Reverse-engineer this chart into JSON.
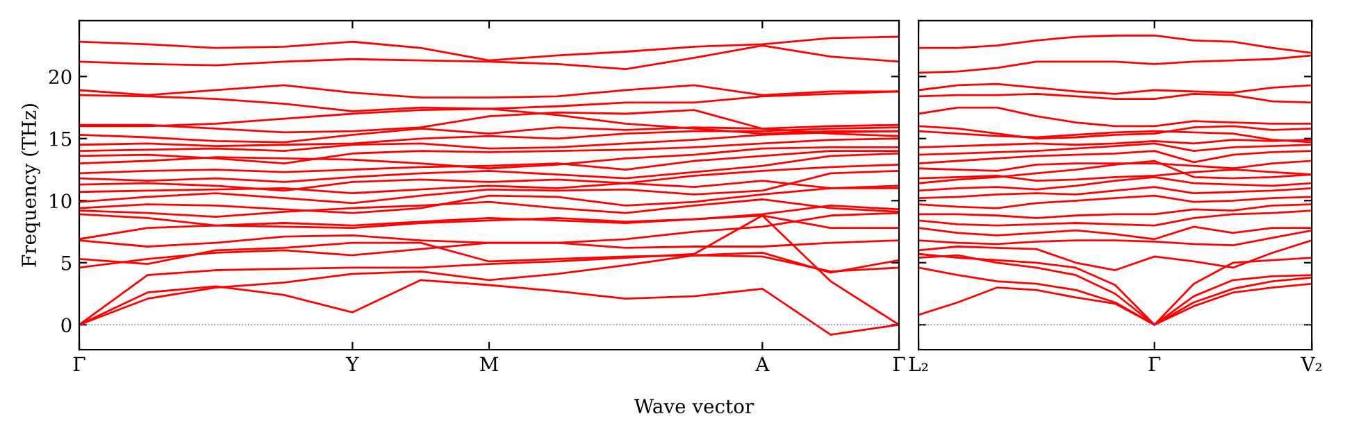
{
  "chart_data": [
    {
      "type": "line",
      "ylabel": "Frequency (THz)",
      "xlabel": "Wave vector",
      "ylim": [
        -2,
        24.5
      ],
      "yticks": [
        0,
        5,
        10,
        15,
        20
      ],
      "categories": [
        "Γ",
        null,
        null,
        null,
        "Y",
        null,
        "M",
        null,
        null,
        null,
        "A",
        null,
        "Γ"
      ],
      "grid": false,
      "ref_lines": [
        {
          "axis": "y",
          "value": 0,
          "color": "#6666ff",
          "line_style": "dotted"
        }
      ],
      "series": [
        {
          "color": "#ff0000",
          "values": [
            0,
            2.6,
            3.1,
            2.4,
            1.0,
            3.6,
            3.2,
            2.7,
            2.1,
            2.3,
            2.9,
            -0.8,
            0
          ]
        },
        {
          "color": "#ff0000",
          "values": [
            0,
            2.1,
            3.0,
            3.4,
            4.1,
            4.3,
            3.6,
            4.1,
            4.8,
            5.6,
            5.8,
            4.2,
            5.2
          ]
        },
        {
          "color": "#ff0000",
          "values": [
            0,
            4.0,
            4.4,
            4.5,
            4.6,
            4.6,
            4.9,
            5.1,
            5.4,
            5.7,
            8.8,
            3.5,
            0
          ]
        },
        {
          "color": "#ff0000",
          "values": [
            4.6,
            5.3,
            5.8,
            6.0,
            5.6,
            6.1,
            6.6,
            6.6,
            6.2,
            6.3,
            6.3,
            6.6,
            6.8
          ]
        },
        {
          "color": "#ff0000",
          "values": [
            5.3,
            4.9,
            6.0,
            6.2,
            6.6,
            6.6,
            5.1,
            5.3,
            5.5,
            5.6,
            5.5,
            4.3,
            4.6
          ]
        },
        {
          "color": "#ff0000",
          "values": [
            6.8,
            6.3,
            6.6,
            7.1,
            7.2,
            6.8,
            6.6,
            6.6,
            6.9,
            7.5,
            7.9,
            8.8,
            9.0
          ]
        },
        {
          "color": "#ff0000",
          "values": [
            6.9,
            7.8,
            8.0,
            8.2,
            8.0,
            8.3,
            8.6,
            8.4,
            8.2,
            8.5,
            8.8,
            7.8,
            7.8
          ]
        },
        {
          "color": "#ff0000",
          "values": [
            8.9,
            8.6,
            8.0,
            7.9,
            7.8,
            8.2,
            8.4,
            8.6,
            8.3,
            8.5,
            8.9,
            9.6,
            9.3
          ]
        },
        {
          "color": "#ff0000",
          "values": [
            9.2,
            9.0,
            8.7,
            9.1,
            9.4,
            9.6,
            9.9,
            9.4,
            9.0,
            9.6,
            10.1,
            9.4,
            9.1
          ]
        },
        {
          "color": "#ff0000",
          "values": [
            9.4,
            9.7,
            9.6,
            9.3,
            9.0,
            9.4,
            10.4,
            10.3,
            9.6,
            9.9,
            10.5,
            11.0,
            11.2
          ]
        },
        {
          "color": "#ff0000",
          "values": [
            9.9,
            10.3,
            10.6,
            10.2,
            9.8,
            10.4,
            10.9,
            10.8,
            10.9,
            10.5,
            10.8,
            12.2,
            12.4
          ]
        },
        {
          "color": "#ff0000",
          "values": [
            10.7,
            10.8,
            10.9,
            11.0,
            10.6,
            10.9,
            11.2,
            11.0,
            11.4,
            11.1,
            11.6,
            11.0,
            11.0
          ]
        },
        {
          "color": "#ff0000",
          "values": [
            11.3,
            11.4,
            11.2,
            10.8,
            11.5,
            11.7,
            11.5,
            11.7,
            11.4,
            12.0,
            12.4,
            12.7,
            12.9
          ]
        },
        {
          "color": "#ff0000",
          "values": [
            11.8,
            11.6,
            11.8,
            11.5,
            11.9,
            12.2,
            12.4,
            12.1,
            11.8,
            12.3,
            12.8,
            13.6,
            13.8
          ]
        },
        {
          "color": "#ff0000",
          "values": [
            12.2,
            12.4,
            12.5,
            12.3,
            12.5,
            12.7,
            12.8,
            13.0,
            12.5,
            13.2,
            13.6,
            14.0,
            14.0
          ]
        },
        {
          "color": "#ff0000",
          "values": [
            13.0,
            13.2,
            13.5,
            13.4,
            13.3,
            13.0,
            12.6,
            12.9,
            13.4,
            13.7,
            14.2,
            14.3,
            14.3
          ]
        },
        {
          "color": "#ff0000",
          "values": [
            13.6,
            13.7,
            13.4,
            13.0,
            13.8,
            14.0,
            13.9,
            14.0,
            14.1,
            14.3,
            14.6,
            14.9,
            15.0
          ]
        },
        {
          "color": "#ff0000",
          "values": [
            14.0,
            14.1,
            14.2,
            14.0,
            14.5,
            14.6,
            14.2,
            14.3,
            14.6,
            14.9,
            15.3,
            15.5,
            15.6
          ]
        },
        {
          "color": "#ff0000",
          "values": [
            14.5,
            14.6,
            14.4,
            14.5,
            14.6,
            15.0,
            15.2,
            15.0,
            15.4,
            15.6,
            15.6,
            15.8,
            15.9
          ]
        },
        {
          "color": "#ff0000",
          "values": [
            15.3,
            15.1,
            14.8,
            14.7,
            15.3,
            15.8,
            15.4,
            15.9,
            15.7,
            15.9,
            15.8,
            16.0,
            16.1
          ]
        },
        {
          "color": "#ff0000",
          "values": [
            16.0,
            16.0,
            16.2,
            16.6,
            17.0,
            17.3,
            17.4,
            16.9,
            16.2,
            15.8,
            15.4,
            15.6,
            15.6
          ]
        },
        {
          "color": "#ff0000",
          "values": [
            16.1,
            16.1,
            15.8,
            15.5,
            15.6,
            15.9,
            16.8,
            17.1,
            17.0,
            17.3,
            15.8,
            15.4,
            15.2
          ]
        },
        {
          "color": "#ff0000",
          "values": [
            18.5,
            18.4,
            18.2,
            17.8,
            17.2,
            17.5,
            17.4,
            17.6,
            17.9,
            17.9,
            18.4,
            18.6,
            18.8
          ]
        },
        {
          "color": "#ff0000",
          "values": [
            18.9,
            18.5,
            18.9,
            19.3,
            18.7,
            18.3,
            18.3,
            18.4,
            18.9,
            19.3,
            18.5,
            18.8,
            18.8
          ]
        },
        {
          "color": "#ff0000",
          "values": [
            21.2,
            21.0,
            20.9,
            21.2,
            21.4,
            21.3,
            21.2,
            21.0,
            20.6,
            21.5,
            22.5,
            21.6,
            21.2
          ]
        },
        {
          "color": "#ff0000",
          "values": [
            22.8,
            22.6,
            22.3,
            22.4,
            22.8,
            22.3,
            21.3,
            21.7,
            22.0,
            22.4,
            22.6,
            23.1,
            23.2
          ]
        }
      ]
    },
    {
      "type": "line",
      "ylim": [
        -2,
        24.5
      ],
      "yticks": [
        0,
        5,
        10,
        15,
        20
      ],
      "tick_labels": "x",
      "categories": [
        "L₂",
        null,
        null,
        null,
        null,
        null,
        "Γ",
        null,
        null,
        null,
        "V₂"
      ],
      "grid": false,
      "ref_lines": [
        {
          "axis": "y",
          "value": 0,
          "color": "#6666ff",
          "line_style": "dotted"
        }
      ],
      "series": [
        {
          "color": "#ff0000",
          "values": [
            0.8,
            1.8,
            3.0,
            2.8,
            2.2,
            1.7,
            0,
            1.5,
            2.6,
            3.0,
            3.3
          ]
        },
        {
          "color": "#ff0000",
          "values": [
            4.6,
            4.0,
            3.5,
            3.3,
            2.8,
            1.8,
            0,
            1.8,
            2.9,
            3.5,
            3.8
          ]
        },
        {
          "color": "#ff0000",
          "values": [
            5.4,
            5.6,
            5.0,
            4.6,
            4.0,
            2.5,
            0,
            2.3,
            3.6,
            3.9,
            4.0
          ]
        },
        {
          "color": "#ff0000",
          "values": [
            5.7,
            5.4,
            5.2,
            5.0,
            4.6,
            3.2,
            0,
            3.3,
            5.0,
            5.2,
            5.4
          ]
        },
        {
          "color": "#ff0000",
          "values": [
            6.0,
            6.3,
            6.2,
            6.1,
            5.0,
            4.4,
            5.5,
            5.1,
            4.6,
            5.8,
            6.8
          ]
        },
        {
          "color": "#ff0000",
          "values": [
            6.8,
            6.6,
            6.5,
            6.7,
            6.8,
            6.8,
            6.7,
            6.5,
            6.4,
            7.0,
            7.6
          ]
        },
        {
          "color": "#ff0000",
          "values": [
            7.8,
            7.4,
            7.2,
            7.4,
            7.6,
            7.3,
            6.9,
            7.9,
            7.4,
            7.8,
            7.8
          ]
        },
        {
          "color": "#ff0000",
          "values": [
            8.4,
            8.1,
            8.0,
            8.1,
            8.2,
            8.1,
            8.0,
            8.6,
            8.9,
            9.0,
            9.2
          ]
        },
        {
          "color": "#ff0000",
          "values": [
            8.9,
            8.9,
            8.8,
            8.6,
            8.8,
            8.9,
            8.9,
            9.3,
            9.2,
            9.6,
            9.7
          ]
        },
        {
          "color": "#ff0000",
          "values": [
            9.7,
            9.5,
            9.4,
            9.8,
            10.0,
            10.2,
            10.4,
            9.9,
            10.0,
            10.2,
            10.3
          ]
        },
        {
          "color": "#ff0000",
          "values": [
            10.2,
            10.3,
            10.5,
            10.6,
            10.5,
            10.8,
            11.1,
            10.6,
            10.7,
            10.8,
            11.0
          ]
        },
        {
          "color": "#ff0000",
          "values": [
            10.8,
            11.0,
            11.1,
            10.9,
            11.2,
            11.6,
            11.9,
            11.4,
            11.3,
            11.2,
            11.4
          ]
        },
        {
          "color": "#ff0000",
          "values": [
            11.4,
            11.7,
            11.9,
            12.2,
            12.5,
            12.9,
            13.2,
            11.9,
            11.8,
            11.9,
            12.1
          ]
        },
        {
          "color": "#ff0000",
          "values": [
            11.8,
            11.9,
            12.0,
            11.6,
            11.7,
            11.9,
            12.0,
            12.3,
            12.5,
            12.3,
            12.1
          ]
        },
        {
          "color": "#ff0000",
          "values": [
            12.6,
            12.5,
            12.4,
            12.9,
            13.0,
            13.0,
            13.0,
            12.8,
            12.6,
            13.0,
            13.2
          ]
        },
        {
          "color": "#ff0000",
          "values": [
            13.0,
            13.2,
            13.4,
            13.6,
            13.7,
            13.8,
            14.0,
            13.1,
            13.7,
            13.9,
            14.0
          ]
        },
        {
          "color": "#ff0000",
          "values": [
            13.7,
            13.8,
            13.9,
            14.0,
            14.2,
            14.4,
            14.6,
            14.0,
            14.3,
            14.4,
            14.5
          ]
        },
        {
          "color": "#ff0000",
          "values": [
            14.3,
            14.4,
            14.5,
            14.6,
            14.5,
            14.6,
            14.8,
            14.6,
            14.9,
            14.8,
            14.9
          ]
        },
        {
          "color": "#ff0000",
          "values": [
            15.6,
            15.4,
            15.2,
            15.1,
            15.3,
            15.5,
            15.6,
            15.5,
            15.4,
            14.9,
            14.7
          ]
        },
        {
          "color": "#ff0000",
          "values": [
            16.0,
            15.8,
            15.4,
            15.0,
            15.1,
            15.3,
            15.4,
            15.9,
            16.0,
            15.7,
            15.8
          ]
        },
        {
          "color": "#ff0000",
          "values": [
            17.0,
            17.5,
            17.5,
            16.8,
            16.3,
            16.0,
            16.0,
            16.4,
            16.3,
            16.2,
            16.2
          ]
        },
        {
          "color": "#ff0000",
          "values": [
            18.4,
            18.5,
            18.5,
            18.6,
            18.4,
            18.2,
            18.2,
            18.6,
            18.5,
            18.0,
            17.9
          ]
        },
        {
          "color": "#ff0000",
          "values": [
            18.9,
            19.3,
            19.4,
            19.1,
            18.8,
            18.6,
            18.9,
            18.8,
            18.7,
            19.1,
            19.3
          ]
        },
        {
          "color": "#ff0000",
          "values": [
            20.3,
            20.4,
            20.7,
            21.2,
            21.2,
            21.2,
            21.0,
            21.2,
            21.3,
            21.4,
            21.7
          ]
        },
        {
          "color": "#ff0000",
          "values": [
            22.3,
            22.3,
            22.5,
            22.9,
            23.2,
            23.3,
            23.3,
            22.9,
            22.8,
            22.3,
            21.9
          ]
        }
      ]
    }
  ]
}
